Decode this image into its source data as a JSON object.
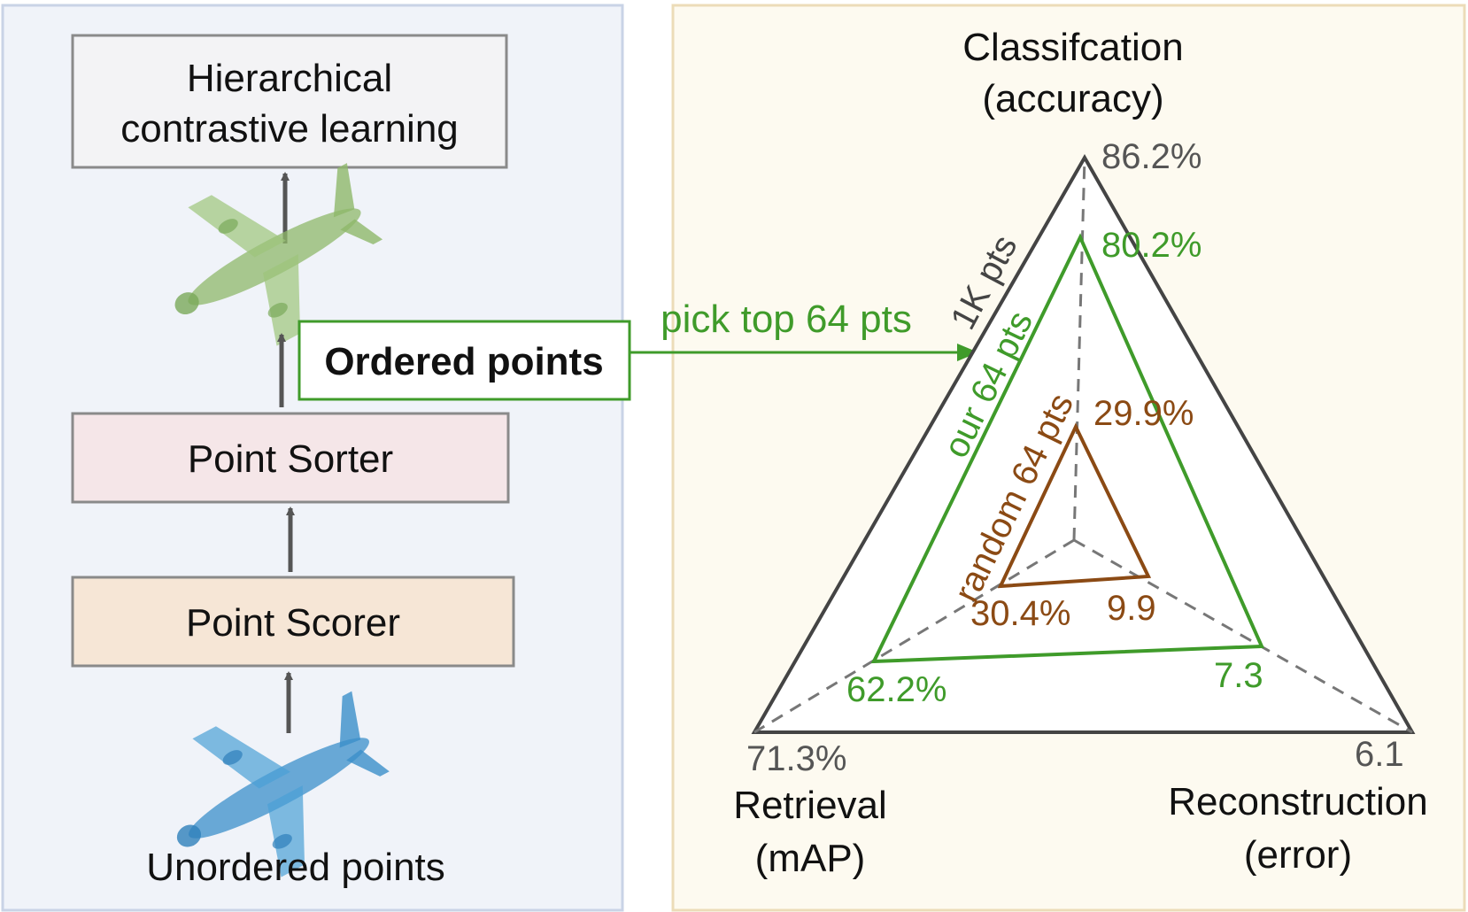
{
  "pipeline": {
    "top_box": {
      "line1": "Hierarchical",
      "line2": "contrastive learning"
    },
    "ordered_label": "Ordered points",
    "sorter_label": "Point Sorter",
    "scorer_label": "Point Scorer",
    "input_label": "Unordered points",
    "pick_label": "pick top 64 pts",
    "colors": {
      "left_panel_bg": "#f0f3f9",
      "left_panel_border": "#c9d3e6",
      "top_box_fill": "#f3f3f5",
      "sorter_fill": "#f5e6e8",
      "scorer_fill": "#f6e6d6",
      "green": "#3f9b2a",
      "arrow": "#555555",
      "ordered_cloud": "#8fb86a",
      "unordered_cloud": "#3b8fc9"
    }
  },
  "radar": {
    "axes": {
      "classification": {
        "line1": "Classifcation",
        "line2": "(accuracy)"
      },
      "retrieval": {
        "line1": "Retrieval",
        "line2": "(mAP)"
      },
      "reconstruction": {
        "line1": "Reconstruction",
        "line2": "(error)"
      }
    },
    "series": [
      {
        "name": "1K pts",
        "color": "#444444",
        "classification": "86.2%",
        "retrieval": "71.3%",
        "reconstruction": "6.1"
      },
      {
        "name": "our 64 pts",
        "color": "#3f9b2a",
        "classification": "80.2%",
        "retrieval": "62.2%",
        "reconstruction": "7.3"
      },
      {
        "name": "random 64 pts",
        "color": "#8b4a14",
        "classification": "29.9%",
        "retrieval": "30.4%",
        "reconstruction": "9.9"
      }
    ],
    "colors": {
      "panel_bg": "#fdfaf0",
      "panel_border": "#ecdcb8",
      "dash": "#777777"
    }
  }
}
